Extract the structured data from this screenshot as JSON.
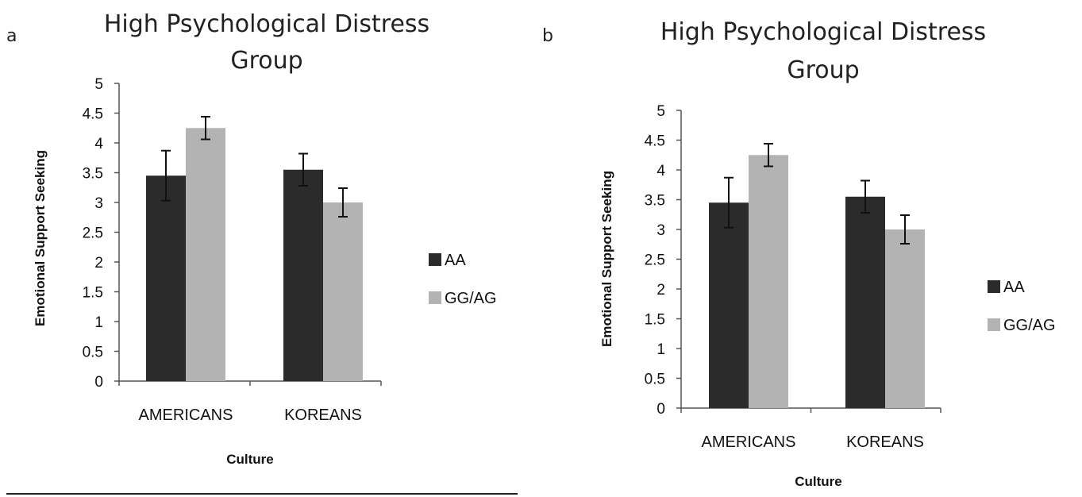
{
  "colors": {
    "AA": "#2b2b2b",
    "GG/AG": "#b3b3b3",
    "axis": "#555555",
    "error_bar": "#111111"
  },
  "chart_data": [
    {
      "panel": "a",
      "type": "bar",
      "title_lines": [
        "High Psychological Distress",
        "Group"
      ],
      "xlabel": "Culture",
      "ylabel": "Emotional Support Seeking",
      "categories": [
        "AMERICANS",
        "KOREANS"
      ],
      "ylim": [
        0,
        5
      ],
      "yticks": [
        "0",
        "0.5",
        "1",
        "1.5",
        "2",
        "2.5",
        "3",
        "3.5",
        "4",
        "4.5",
        "5"
      ],
      "legend_position": "right",
      "grid": false,
      "series": [
        {
          "name": "AA",
          "values": [
            3.45,
            3.55
          ],
          "errors": [
            0.42,
            0.27
          ]
        },
        {
          "name": "GG/AG",
          "values": [
            4.25,
            3.0
          ],
          "errors": [
            0.19,
            0.24
          ]
        }
      ]
    },
    {
      "panel": "b",
      "type": "bar",
      "title_lines": [
        "High Psychological Distress",
        "Group"
      ],
      "xlabel": "Culture",
      "ylabel": "Emotional Support Seeking",
      "categories": [
        "AMERICANS",
        "KOREANS"
      ],
      "ylim": [
        0,
        5
      ],
      "yticks": [
        "0",
        "0.5",
        "1",
        "1.5",
        "2",
        "2.5",
        "3",
        "3.5",
        "4",
        "4.5",
        "5"
      ],
      "legend_position": "right",
      "grid": false,
      "series": [
        {
          "name": "AA",
          "values": [
            3.45,
            3.55
          ],
          "errors": [
            0.42,
            0.27
          ]
        },
        {
          "name": "GG/AG",
          "values": [
            4.25,
            3.0
          ],
          "errors": [
            0.19,
            0.24
          ]
        }
      ]
    }
  ]
}
